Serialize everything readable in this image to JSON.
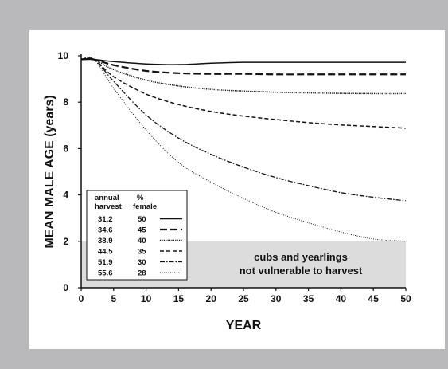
{
  "chart_data": {
    "type": "line",
    "title": "",
    "xlabel": "YEAR",
    "ylabel": "MEAN MALE AGE (years)",
    "xlim": [
      0,
      50
    ],
    "ylim": [
      0,
      10
    ],
    "x_ticks": [
      0,
      5,
      10,
      15,
      20,
      25,
      30,
      35,
      40,
      45,
      50
    ],
    "y_ticks": [
      0,
      2,
      4,
      6,
      8,
      10
    ],
    "grid": false,
    "legend": {
      "placement": "bottom-left",
      "header_col1": [
        "annual",
        "harvest"
      ],
      "header_col2": [
        "%",
        "female"
      ]
    },
    "shaded_region": {
      "y_from": 0,
      "y_to": 2,
      "color": "#dcdcdc",
      "label_line1": "cubs and yearlings",
      "label_line2": "not vulnerable to harvest"
    },
    "x": [
      0,
      2,
      5,
      10,
      15,
      20,
      25,
      30,
      35,
      40,
      45,
      50
    ],
    "series": [
      {
        "annual_harvest": "31.2",
        "percent_female": "50",
        "style": "solid",
        "values": [
          9.85,
          9.84,
          9.75,
          9.65,
          9.62,
          9.68,
          9.72,
          9.72,
          9.72,
          9.72,
          9.72,
          9.72
        ]
      },
      {
        "annual_harvest": "34.6",
        "percent_female": "45",
        "style": "dash-long",
        "values": [
          9.85,
          9.84,
          9.6,
          9.35,
          9.25,
          9.22,
          9.22,
          9.2,
          9.2,
          9.2,
          9.2,
          9.2
        ]
      },
      {
        "annual_harvest": "38.9",
        "percent_female": "40",
        "style": "dotted",
        "values": [
          9.85,
          9.84,
          9.4,
          8.95,
          8.7,
          8.55,
          8.48,
          8.43,
          8.4,
          8.38,
          8.37,
          8.37
        ]
      },
      {
        "annual_harvest": "44.5",
        "percent_female": "35",
        "style": "dash-short",
        "values": [
          9.85,
          9.84,
          9.1,
          8.35,
          7.9,
          7.6,
          7.4,
          7.25,
          7.12,
          7.02,
          6.95,
          6.88
        ]
      },
      {
        "annual_harvest": "51.9",
        "percent_female": "30",
        "style": "dash-dot",
        "values": [
          9.85,
          9.84,
          8.9,
          7.45,
          6.45,
          5.75,
          5.2,
          4.75,
          4.4,
          4.1,
          3.9,
          3.75
        ]
      },
      {
        "annual_harvest": "55.6",
        "percent_female": "28",
        "style": "dotted-fine",
        "values": [
          9.85,
          9.84,
          8.6,
          6.8,
          5.4,
          4.55,
          3.85,
          3.25,
          2.8,
          2.4,
          2.1,
          2.0
        ]
      }
    ]
  }
}
